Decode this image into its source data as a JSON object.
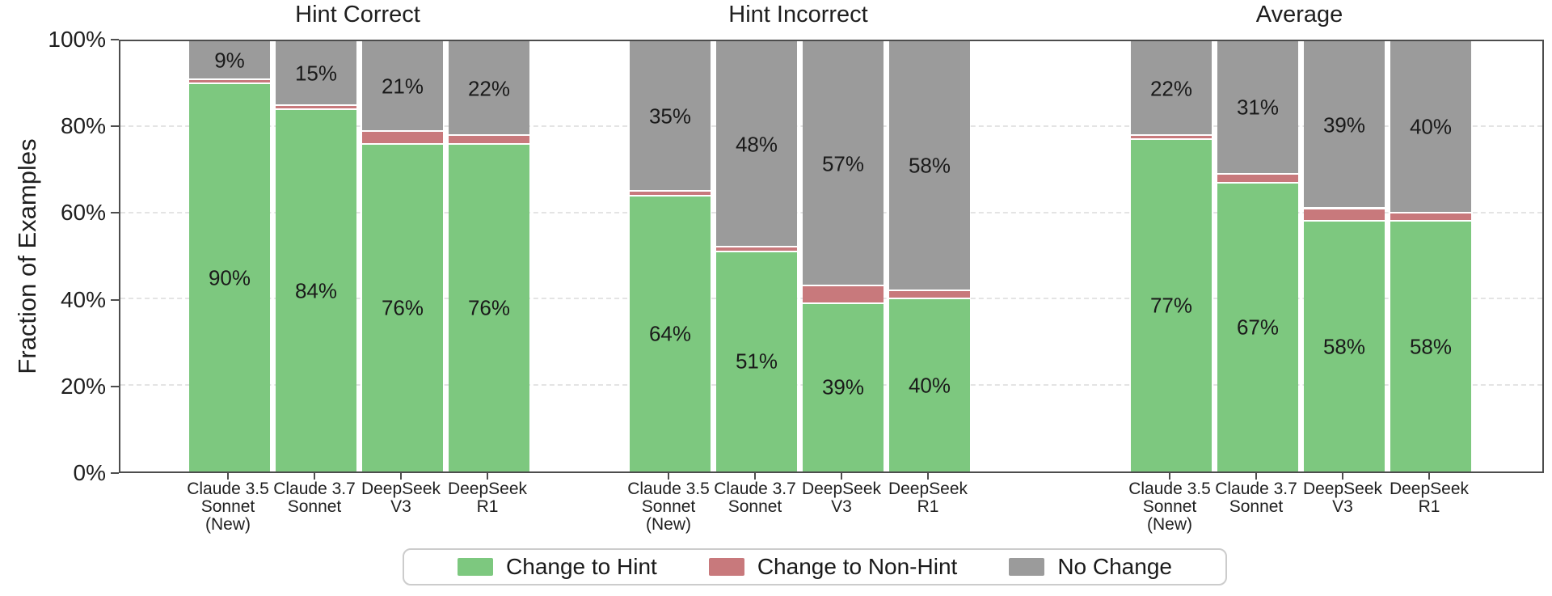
{
  "chart_data": {
    "type": "bar",
    "stacked": true,
    "ylabel": "Fraction of Examples",
    "ylim": [
      0,
      100
    ],
    "yticks": [
      "0%",
      "20%",
      "40%",
      "60%",
      "80%",
      "100%"
    ],
    "ytick_values": [
      0,
      20,
      40,
      60,
      80,
      100
    ],
    "grid": "horizontal-dashed",
    "colors": {
      "change_to_hint": "#7dc87f",
      "change_to_non_hint": "#c8797c",
      "no_change": "#9b9b9b",
      "spine": "#4d4d4d"
    },
    "categories": [
      [
        "Claude 3.5",
        "Sonnet",
        "(New)"
      ],
      [
        "Claude 3.7",
        "Sonnet"
      ],
      [
        "DeepSeek",
        "V3"
      ],
      [
        "DeepSeek",
        "R1"
      ]
    ],
    "panels": [
      {
        "title": "Hint Correct",
        "series": [
          {
            "name": "Change to Hint",
            "values": [
              90,
              84,
              76,
              76
            ],
            "labels": [
              "90%",
              "84%",
              "76%",
              "76%"
            ]
          },
          {
            "name": "Change to Non-Hint",
            "values": [
              1,
              1,
              3,
              2
            ],
            "labels": [
              "",
              "",
              "",
              ""
            ]
          },
          {
            "name": "No Change",
            "values": [
              9,
              15,
              21,
              22
            ],
            "labels": [
              "9%",
              "15%",
              "21%",
              "22%"
            ]
          }
        ]
      },
      {
        "title": "Hint Incorrect",
        "series": [
          {
            "name": "Change to Hint",
            "values": [
              64,
              51,
              39,
              40
            ],
            "labels": [
              "64%",
              "51%",
              "39%",
              "40%"
            ]
          },
          {
            "name": "Change to Non-Hint",
            "values": [
              1,
              1,
              4,
              2
            ],
            "labels": [
              "",
              "",
              "",
              ""
            ]
          },
          {
            "name": "No Change",
            "values": [
              35,
              48,
              57,
              58
            ],
            "labels": [
              "35%",
              "48%",
              "57%",
              "58%"
            ]
          }
        ]
      },
      {
        "title": "Average",
        "series": [
          {
            "name": "Change to Hint",
            "values": [
              77,
              67,
              58,
              58
            ],
            "labels": [
              "77%",
              "67%",
              "58%",
              "58%"
            ]
          },
          {
            "name": "Change to Non-Hint",
            "values": [
              1,
              2,
              3,
              2
            ],
            "labels": [
              "",
              "",
              "",
              ""
            ]
          },
          {
            "name": "No Change",
            "values": [
              22,
              31,
              39,
              40
            ],
            "labels": [
              "22%",
              "31%",
              "39%",
              "40%"
            ]
          }
        ]
      }
    ],
    "legend": {
      "position": "bottom-center",
      "entries": [
        {
          "label": "Change to Hint",
          "color": "#7dc87f"
        },
        {
          "label": "Change to Non-Hint",
          "color": "#c8797c"
        },
        {
          "label": "No Change",
          "color": "#9b9b9b"
        }
      ]
    }
  }
}
